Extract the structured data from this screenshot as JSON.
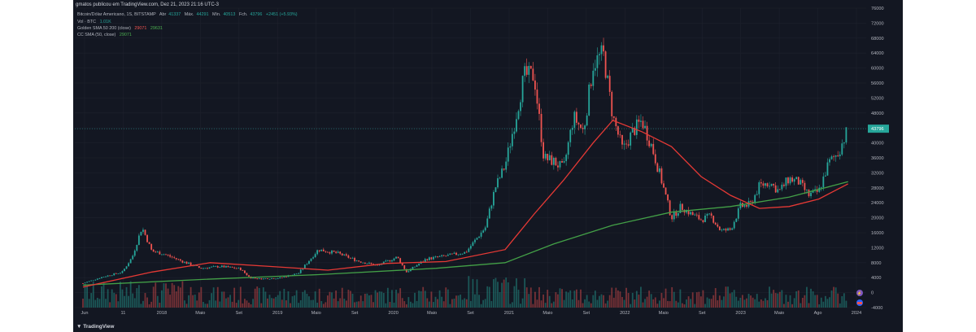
{
  "header": {
    "published": "gmatos publicou em TradingView.com, Dez 21, 2023 21:16 UTC-3"
  },
  "legend": {
    "symbol_line": "Bitcoin/Dólar Americano, 1S, BITSTAMP",
    "ohlc": {
      "o_label": "Abr",
      "o": "41337",
      "h_label": "Máx.",
      "h": "44291",
      "l_label": "Mín.",
      "l": "40513",
      "c_label": "Fch.",
      "c": "43796",
      "chg": "+2451 (+5.93%)"
    },
    "volume_label": "Vol · BTC",
    "volume_value": "1.01K",
    "golden_label": "Golden SMA 50 200 (close)",
    "golden_v1": "29071",
    "golden_v2": "29631",
    "cc_label": "CC SMA (50, close)",
    "cc_value": "29071"
  },
  "footer": {
    "brand": "TradingView"
  },
  "colors": {
    "background": "#131722",
    "up": "#26a69a",
    "down": "#ef5350",
    "sma50": "#e53935",
    "sma200": "#43a047",
    "grid": "#1e222d",
    "price_tag": "#26a69a"
  },
  "chart_data": {
    "type": "candlestick",
    "y_ticks": [
      "76000",
      "72000",
      "68000",
      "64000",
      "60000",
      "56000",
      "52000",
      "48000",
      "44000",
      "40000",
      "36000",
      "32000",
      "28000",
      "24000",
      "20000",
      "16000",
      "12000",
      "8000",
      "4000",
      "0",
      "-4000"
    ],
    "ylim": [
      -4000,
      76000
    ],
    "current_price_tag": "43796",
    "x_ticks": [
      "Jun",
      "11",
      "2018",
      "Maio",
      "Set",
      "2019",
      "Maio",
      "Set",
      "2020",
      "Maio",
      "Set",
      "2021",
      "Maio",
      "Set",
      "2022",
      "Maio",
      "Set",
      "2023",
      "Maio",
      "Ago",
      "2024"
    ],
    "x_range": [
      "2017-06",
      "2024-01"
    ],
    "close_series": [
      {
        "t": "2017-06",
        "v": 2500
      },
      {
        "t": "2017-08",
        "v": 4200
      },
      {
        "t": "2017-10",
        "v": 5500
      },
      {
        "t": "2017-11",
        "v": 9500
      },
      {
        "t": "2017-12",
        "v": 17500
      },
      {
        "t": "2018-01",
        "v": 11000
      },
      {
        "t": "2018-02",
        "v": 10500
      },
      {
        "t": "2018-04",
        "v": 8500
      },
      {
        "t": "2018-06",
        "v": 6500
      },
      {
        "t": "2018-08",
        "v": 7000
      },
      {
        "t": "2018-10",
        "v": 6400
      },
      {
        "t": "2018-11",
        "v": 4000
      },
      {
        "t": "2018-12",
        "v": 3700
      },
      {
        "t": "2019-02",
        "v": 3900
      },
      {
        "t": "2019-04",
        "v": 5200
      },
      {
        "t": "2019-06",
        "v": 11500
      },
      {
        "t": "2019-08",
        "v": 10500
      },
      {
        "t": "2019-10",
        "v": 8500
      },
      {
        "t": "2019-12",
        "v": 7200
      },
      {
        "t": "2020-02",
        "v": 9500
      },
      {
        "t": "2020-03",
        "v": 5500
      },
      {
        "t": "2020-05",
        "v": 9000
      },
      {
        "t": "2020-07",
        "v": 9800
      },
      {
        "t": "2020-09",
        "v": 10800
      },
      {
        "t": "2020-11",
        "v": 17500
      },
      {
        "t": "2020-12",
        "v": 28000
      },
      {
        "t": "2021-01",
        "v": 34000
      },
      {
        "t": "2021-02",
        "v": 46000
      },
      {
        "t": "2021-03",
        "v": 58000
      },
      {
        "t": "2021-04",
        "v": 58000
      },
      {
        "t": "2021-05",
        "v": 36000
      },
      {
        "t": "2021-06",
        "v": 35000
      },
      {
        "t": "2021-07",
        "v": 33000
      },
      {
        "t": "2021-08",
        "v": 47000
      },
      {
        "t": "2021-09",
        "v": 43000
      },
      {
        "t": "2021-10",
        "v": 61000
      },
      {
        "t": "2021-11",
        "v": 64000
      },
      {
        "t": "2021-12",
        "v": 47000
      },
      {
        "t": "2022-01",
        "v": 38000
      },
      {
        "t": "2022-02",
        "v": 43000
      },
      {
        "t": "2022-03",
        "v": 46000
      },
      {
        "t": "2022-04",
        "v": 39000
      },
      {
        "t": "2022-05",
        "v": 30000
      },
      {
        "t": "2022-06",
        "v": 20000
      },
      {
        "t": "2022-07",
        "v": 23000
      },
      {
        "t": "2022-08",
        "v": 21000
      },
      {
        "t": "2022-09",
        "v": 19500
      },
      {
        "t": "2022-10",
        "v": 20500
      },
      {
        "t": "2022-11",
        "v": 16500
      },
      {
        "t": "2022-12",
        "v": 16800
      },
      {
        "t": "2023-01",
        "v": 23000
      },
      {
        "t": "2023-02",
        "v": 23500
      },
      {
        "t": "2023-03",
        "v": 28500
      },
      {
        "t": "2023-04",
        "v": 29500
      },
      {
        "t": "2023-05",
        "v": 27000
      },
      {
        "t": "2023-06",
        "v": 30500
      },
      {
        "t": "2023-07",
        "v": 29500
      },
      {
        "t": "2023-08",
        "v": 26000
      },
      {
        "t": "2023-09",
        "v": 27000
      },
      {
        "t": "2023-10",
        "v": 34500
      },
      {
        "t": "2023-11",
        "v": 37500
      },
      {
        "t": "2023-12",
        "v": 43796
      }
    ],
    "sma50_series": [
      {
        "t": "2017-06",
        "v": 1500
      },
      {
        "t": "2018-01",
        "v": 5500
      },
      {
        "t": "2018-07",
        "v": 8000
      },
      {
        "t": "2019-01",
        "v": 7000
      },
      {
        "t": "2019-07",
        "v": 6000
      },
      {
        "t": "2020-01",
        "v": 7800
      },
      {
        "t": "2020-07",
        "v": 8300
      },
      {
        "t": "2021-01",
        "v": 11500
      },
      {
        "t": "2021-04",
        "v": 21000
      },
      {
        "t": "2021-07",
        "v": 30000
      },
      {
        "t": "2021-10",
        "v": 40000
      },
      {
        "t": "2021-12",
        "v": 46000
      },
      {
        "t": "2022-03",
        "v": 43000
      },
      {
        "t": "2022-06",
        "v": 39000
      },
      {
        "t": "2022-09",
        "v": 31000
      },
      {
        "t": "2022-12",
        "v": 26000
      },
      {
        "t": "2023-03",
        "v": 22500
      },
      {
        "t": "2023-06",
        "v": 23000
      },
      {
        "t": "2023-09",
        "v": 25000
      },
      {
        "t": "2023-12",
        "v": 29071
      }
    ],
    "sma200_series": [
      {
        "t": "2017-06",
        "v": 2000
      },
      {
        "t": "2018-06",
        "v": 3500
      },
      {
        "t": "2019-06",
        "v": 4800
      },
      {
        "t": "2020-06",
        "v": 6500
      },
      {
        "t": "2021-01",
        "v": 8000
      },
      {
        "t": "2021-06",
        "v": 13000
      },
      {
        "t": "2021-12",
        "v": 18000
      },
      {
        "t": "2022-06",
        "v": 21500
      },
      {
        "t": "2022-12",
        "v": 23000
      },
      {
        "t": "2023-06",
        "v": 25500
      },
      {
        "t": "2023-12",
        "v": 29631
      }
    ]
  }
}
